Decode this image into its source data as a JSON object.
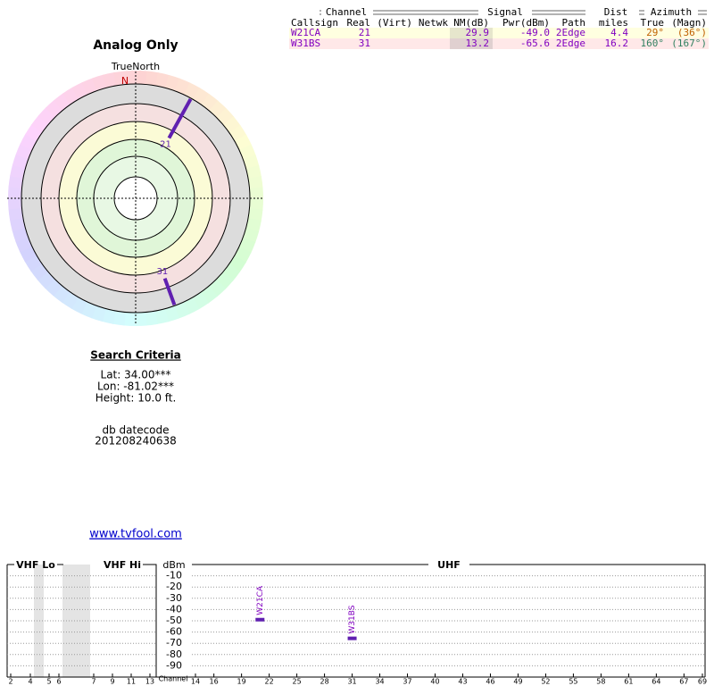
{
  "title": "Analog Only",
  "compass_label": "TrueNorth",
  "north": "N",
  "table": {
    "groups": [
      "Channel",
      "Signal",
      "Dist",
      "Azimuth"
    ],
    "columns": [
      "Callsign",
      "Real",
      "(Virt)",
      "Netwk",
      "NM(dB)",
      "Pwr(dBm)",
      "Path",
      "miles",
      "True",
      "(Magn)"
    ],
    "rows": [
      {
        "callsign": "W21CA",
        "real": 21,
        "nm": 29.9,
        "pwr": {
          "value": -49,
          "label": "-49.0"
        },
        "path": "2Edge",
        "dist": 4.4,
        "true": {
          "value": 29,
          "label": "29°"
        },
        "magn": "(36°)"
      },
      {
        "callsign": "W31BS",
        "real": 31,
        "nm": 13.2,
        "pwr": {
          "value": -65.6,
          "label": "-65.6"
        },
        "path": "2Edge",
        "dist": 16.2,
        "true": {
          "value": 160,
          "label": "160°"
        },
        "magn": "(167°)"
      }
    ]
  },
  "search": {
    "title": "Search Criteria",
    "lines": [
      "Lat: 34.00***",
      "Lon: -81.02***",
      "Height: 10.0 ft."
    ],
    "datecode_label": "db datecode",
    "datecode": "201208240638"
  },
  "link": "www.tvfool.com",
  "spectrum": {
    "bands": [
      "VHF Lo",
      "VHF Hi",
      "UHF"
    ],
    "ylabel": "dBm",
    "xlabel": "Channel",
    "ylim": [
      -100,
      0
    ],
    "yticks": [
      -10,
      -20,
      -30,
      -40,
      -50,
      -60,
      -70,
      -80,
      -90
    ],
    "vhf_lo_ticks": [
      2,
      4,
      5,
      6
    ],
    "vhf_hi_ticks": [
      7,
      9,
      11,
      13
    ],
    "uhf_ticks": [
      14,
      16,
      19,
      22,
      25,
      28,
      31,
      34,
      37,
      40,
      43,
      46,
      49,
      52,
      55,
      58,
      61,
      64,
      67,
      69
    ]
  }
}
